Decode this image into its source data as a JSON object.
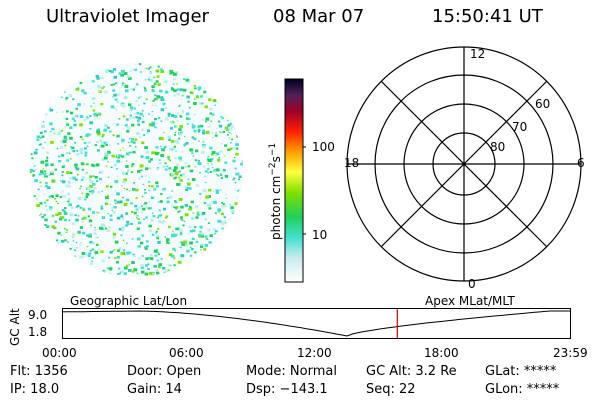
{
  "header": {
    "title": "Ultraviolet Imager",
    "date": "08 Mar 07",
    "time": "15:50:41 UT"
  },
  "colorbar": {
    "unit_base": "photon cm",
    "exp1": "−2",
    "unit_mid": "s",
    "exp2": "−1",
    "ticks": [
      "100",
      "10"
    ]
  },
  "polar": {
    "mlt_labels": {
      "top": "12",
      "left": "18",
      "right": "6",
      "bottom": "0"
    },
    "lat_labels": [
      "60",
      "70",
      "80"
    ]
  },
  "track": {
    "left_label": "Geographic Lat/Lon",
    "right_label": "Apex MLat/MLT",
    "axis_title": "GC Alt",
    "y_ticks": [
      "9.0",
      "1.8"
    ],
    "x_ticks": [
      "00:00",
      "06:00",
      "12:00",
      "18:00",
      "23:59"
    ],
    "current_time_fraction": 0.66
  },
  "footer": {
    "flt": "Flt: 1356",
    "door": "Door: Open",
    "mode": "Mode: Normal",
    "gcalt": "GC Alt: 3.2 Re",
    "glat": "GLat: *****",
    "ip": "IP: 18.0",
    "gain": "Gain: 14",
    "dsp": "Dsp: −143.1",
    "seq": "Seq: 22",
    "glon": "GLon: *****"
  }
}
